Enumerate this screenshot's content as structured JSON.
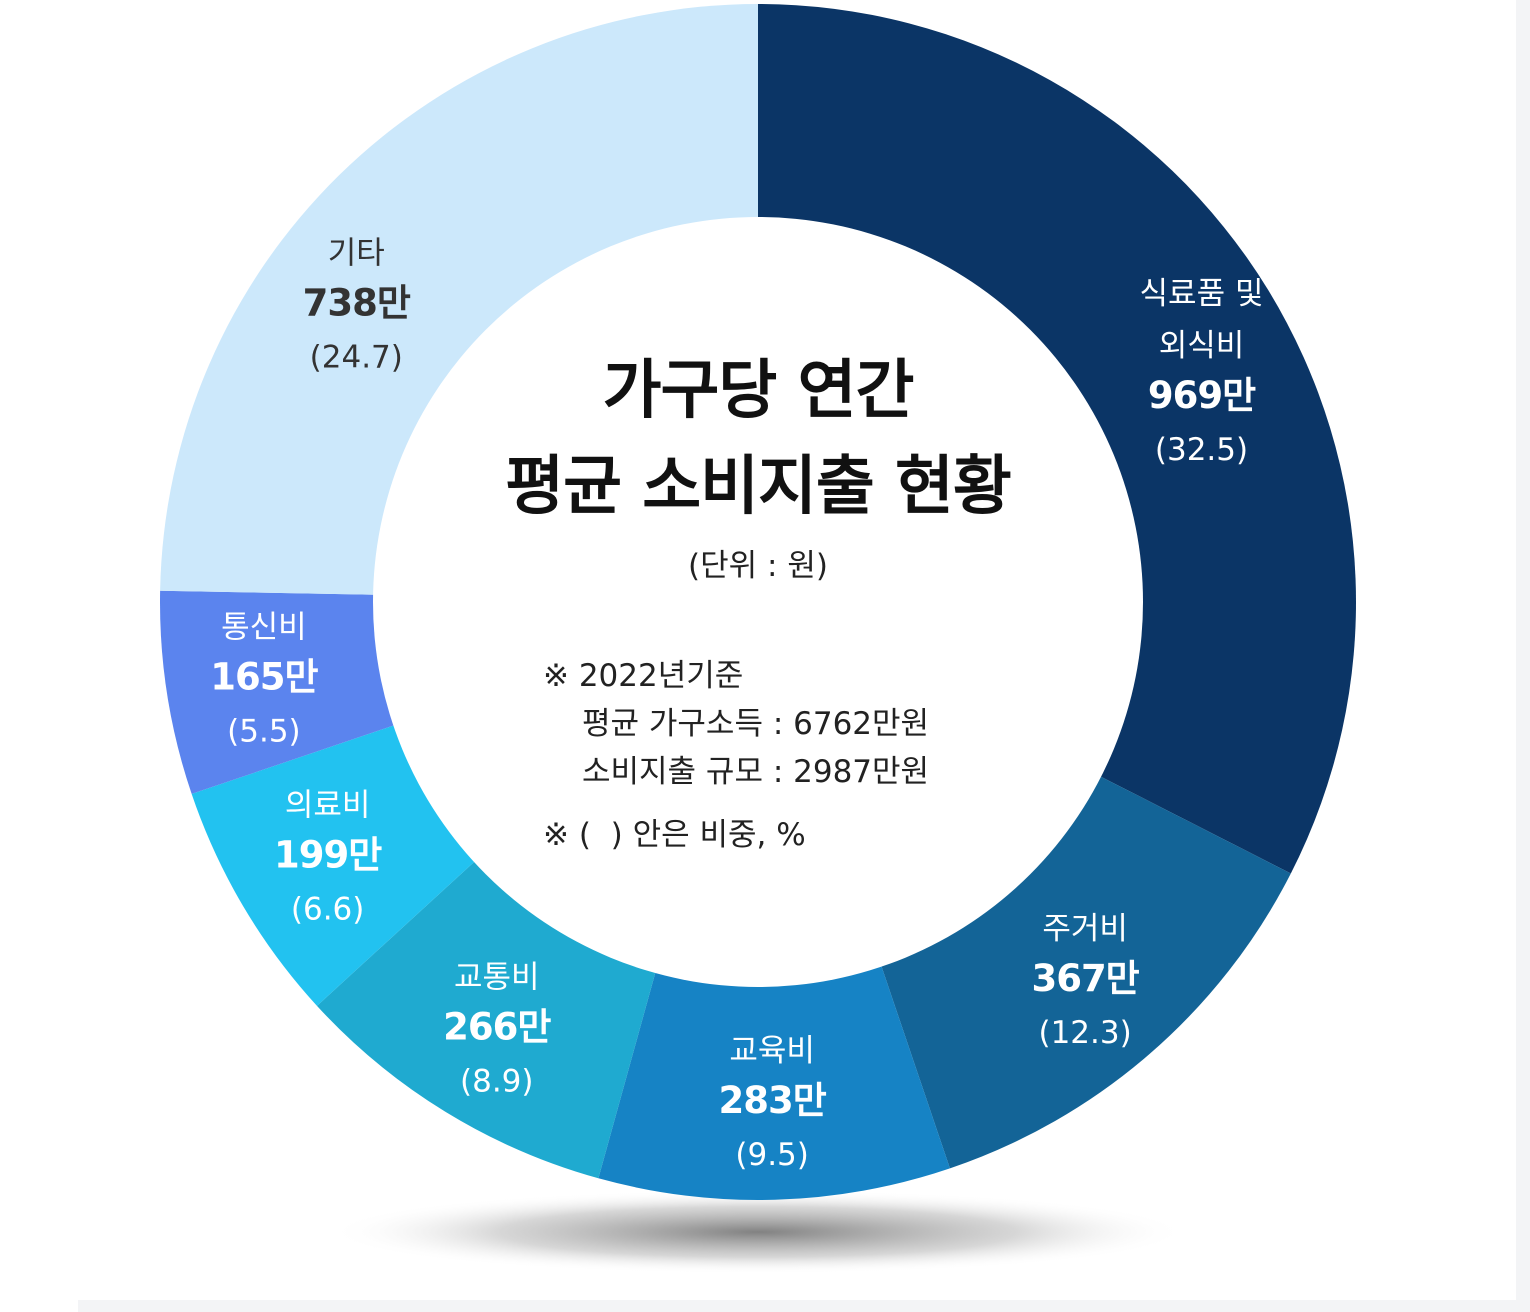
{
  "chart_data": {
    "type": "donut",
    "title_lines": [
      "가구당 연간",
      "평균 소비지출 현황"
    ],
    "unit_note": "(단위 : 원)",
    "notes": [
      "※ 2022년기준",
      "평균 가구소득 : 6762만원",
      "소비지출 규모 : 2987만원",
      "※ (  ) 안은 비중, %"
    ],
    "series": [
      {
        "name_lines": [
          "식료품 및",
          "외식비"
        ],
        "amount_label": "969만",
        "amount": 969,
        "percent": 32.5,
        "percent_label": "(32.5)",
        "color": "#0b3566",
        "text_color": "#ffffff"
      },
      {
        "name_lines": [
          "주거비"
        ],
        "amount_label": "367만",
        "amount": 367,
        "percent": 12.3,
        "percent_label": "(12.3)",
        "color": "#136497",
        "text_color": "#ffffff"
      },
      {
        "name_lines": [
          "교육비"
        ],
        "amount_label": "283만",
        "amount": 283,
        "percent": 9.5,
        "percent_label": "(9.5)",
        "color": "#1683c5",
        "text_color": "#ffffff"
      },
      {
        "name_lines": [
          "교통비"
        ],
        "amount_label": "266만",
        "amount": 266,
        "percent": 8.9,
        "percent_label": "(8.9)",
        "color": "#1faad0",
        "text_color": "#ffffff"
      },
      {
        "name_lines": [
          "의료비"
        ],
        "amount_label": "199만",
        "amount": 199,
        "percent": 6.6,
        "percent_label": "(6.6)",
        "color": "#22c2f0",
        "text_color": "#ffffff"
      },
      {
        "name_lines": [
          "통신비"
        ],
        "amount_label": "165만",
        "amount": 165,
        "percent": 5.5,
        "percent_label": "(5.5)",
        "color": "#5b84ee",
        "text_color": "#ffffff"
      },
      {
        "name_lines": [
          "기타"
        ],
        "amount_label": "738만",
        "amount": 738,
        "percent": 24.7,
        "percent_label": "(24.7)",
        "color": "#cce8fb",
        "text_color": "#333333"
      }
    ]
  }
}
